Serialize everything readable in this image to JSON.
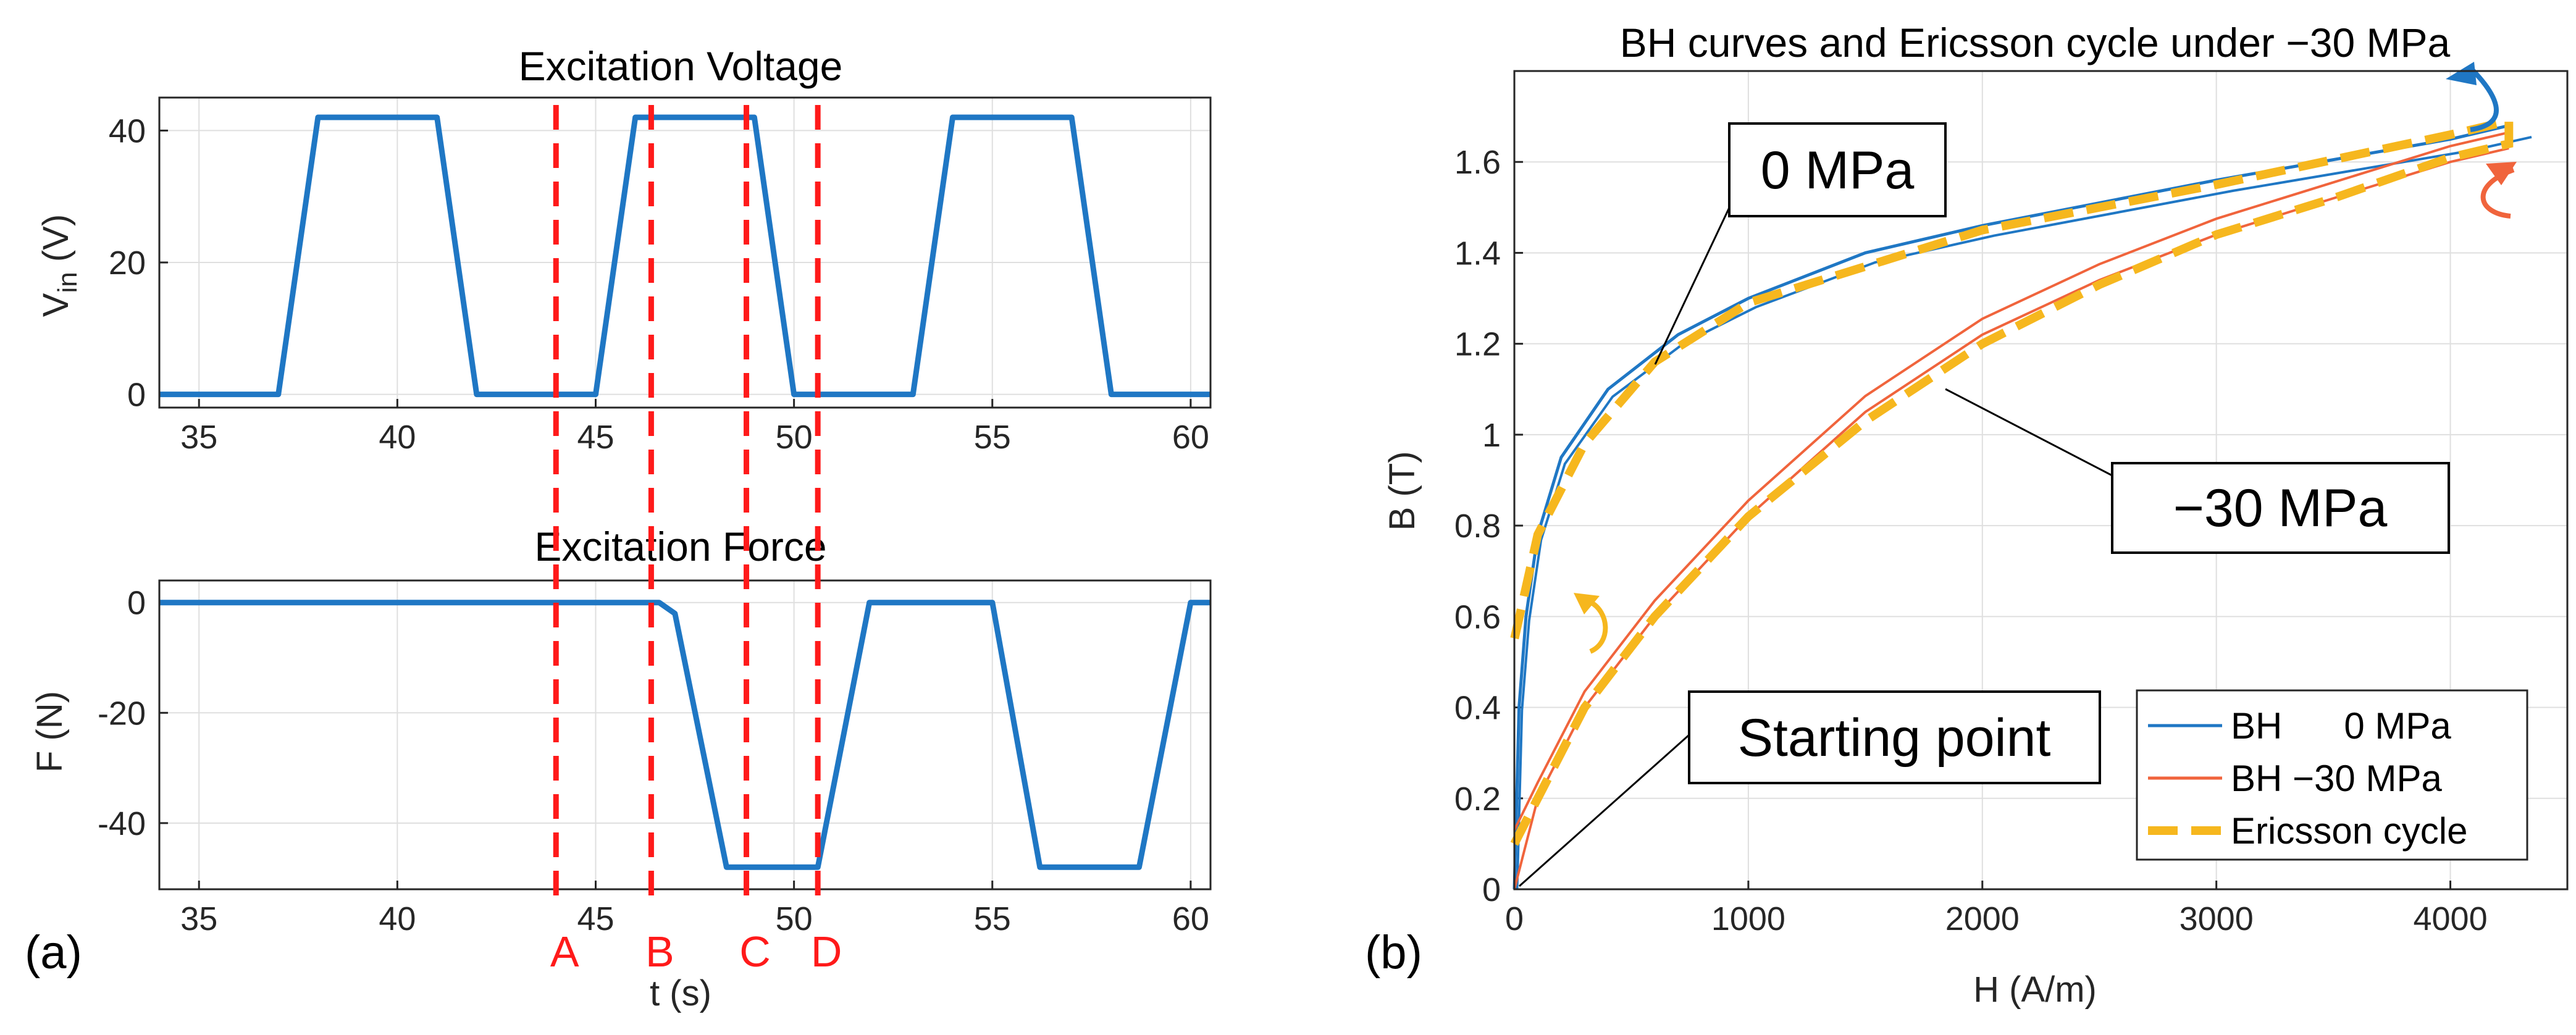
{
  "colors": {
    "voltage": "#1f77c4",
    "force": "#1f77c4",
    "bh0": "#1f77c4",
    "bh30": "#f0643c",
    "ericsson": "#f6b71e",
    "marker": "#ff1a1a"
  },
  "chart_data": [
    {
      "type": "line",
      "title": "Excitation Voltage",
      "xlabel": "",
      "ylabel_main": "V",
      "ylabel_sub": "in",
      "ylabel_unit": " (V)",
      "xlim": [
        34,
        60.5
      ],
      "ylim": [
        -2,
        45
      ],
      "xticks": [
        35,
        40,
        45,
        50,
        55,
        60
      ],
      "yticks": [
        0,
        20,
        40
      ],
      "grid": true,
      "series": [
        {
          "name": "Vin",
          "x": [
            34,
            37,
            38,
            41,
            42,
            45,
            46,
            49,
            50,
            53,
            54,
            57,
            58,
            60.5
          ],
          "y": [
            0,
            0,
            42,
            42,
            0,
            0,
            42,
            42,
            0,
            0,
            42,
            42,
            0,
            0
          ]
        }
      ]
    },
    {
      "type": "line",
      "title": "Excitation Force",
      "xlabel": "t (s)",
      "ylabel": "F (N)",
      "xlim": [
        34,
        60.5
      ],
      "ylim": [
        -52,
        4
      ],
      "xticks": [
        35,
        40,
        45,
        50,
        55,
        60
      ],
      "yticks": [
        0,
        -20,
        -40
      ],
      "grid": true,
      "series": [
        {
          "name": "F",
          "x": [
            34,
            46.6,
            47.0,
            48.3,
            49.5,
            50.6,
            51.9,
            55.0,
            56.2,
            58.7,
            60.0,
            60.5
          ],
          "y": [
            0,
            0,
            -2,
            -48,
            -48,
            -48,
            0,
            0,
            -48,
            -48,
            0,
            0
          ]
        }
      ],
      "markers": [
        {
          "label": "A",
          "x": 44.0
        },
        {
          "label": "B",
          "x": 46.4
        },
        {
          "label": "C",
          "x": 48.8
        },
        {
          "label": "D",
          "x": 50.6
        }
      ]
    },
    {
      "type": "line",
      "title": "BH curves and Ericsson cycle under −30 MPa",
      "xlabel": "H (A/m)",
      "ylabel": "B (T)",
      "xlim": [
        0,
        4500
      ],
      "ylim": [
        0,
        1.8
      ],
      "xticks": [
        0,
        1000,
        2000,
        3000,
        4000
      ],
      "yticks": [
        0,
        0.2,
        0.4,
        0.6,
        0.8,
        1,
        1.2,
        1.4,
        1.6
      ],
      "ytick_labels": [
        "0",
        "0.2",
        "0.4",
        "0.6",
        "0.8",
        "1",
        "1.2",
        "1.4",
        "1.6"
      ],
      "grid": true,
      "legend": "bottom-right",
      "series": [
        {
          "name": "BH      0 MPa",
          "x": [
            0,
            20,
            50,
            100,
            200,
            400,
            700,
            1000,
            1500,
            2000,
            3000,
            4000,
            4250
          ],
          "y": [
            0,
            0.4,
            0.6,
            0.78,
            0.95,
            1.1,
            1.22,
            1.3,
            1.4,
            1.46,
            1.56,
            1.65,
            1.68
          ]
        },
        {
          "name": "BH −30 MPa",
          "x": [
            0,
            100,
            300,
            600,
            1000,
            1500,
            2000,
            2500,
            3000,
            3500,
            4000,
            4250
          ],
          "y": [
            0,
            0.2,
            0.4,
            0.6,
            0.82,
            1.05,
            1.22,
            1.34,
            1.44,
            1.52,
            1.6,
            1.63
          ]
        },
        {
          "name": "Ericsson cycle",
          "x": [
            0,
            50,
            150,
            300,
            600,
            1000,
            1500,
            2000,
            2500,
            3000,
            3500,
            4000,
            4250,
            4250,
            4000,
            3000,
            2000,
            1500,
            1000,
            600,
            300,
            100,
            0
          ],
          "y": [
            0.1,
            0.15,
            0.25,
            0.4,
            0.6,
            0.82,
            1.03,
            1.2,
            1.33,
            1.44,
            1.52,
            1.61,
            1.64,
            1.69,
            1.66,
            1.55,
            1.45,
            1.37,
            1.29,
            1.16,
            0.98,
            0.78,
            0.55
          ]
        }
      ],
      "callouts": [
        "0 MPa",
        "−30 MPa",
        "Starting point"
      ]
    }
  ],
  "panel_labels": [
    "(a)",
    "(b)"
  ]
}
